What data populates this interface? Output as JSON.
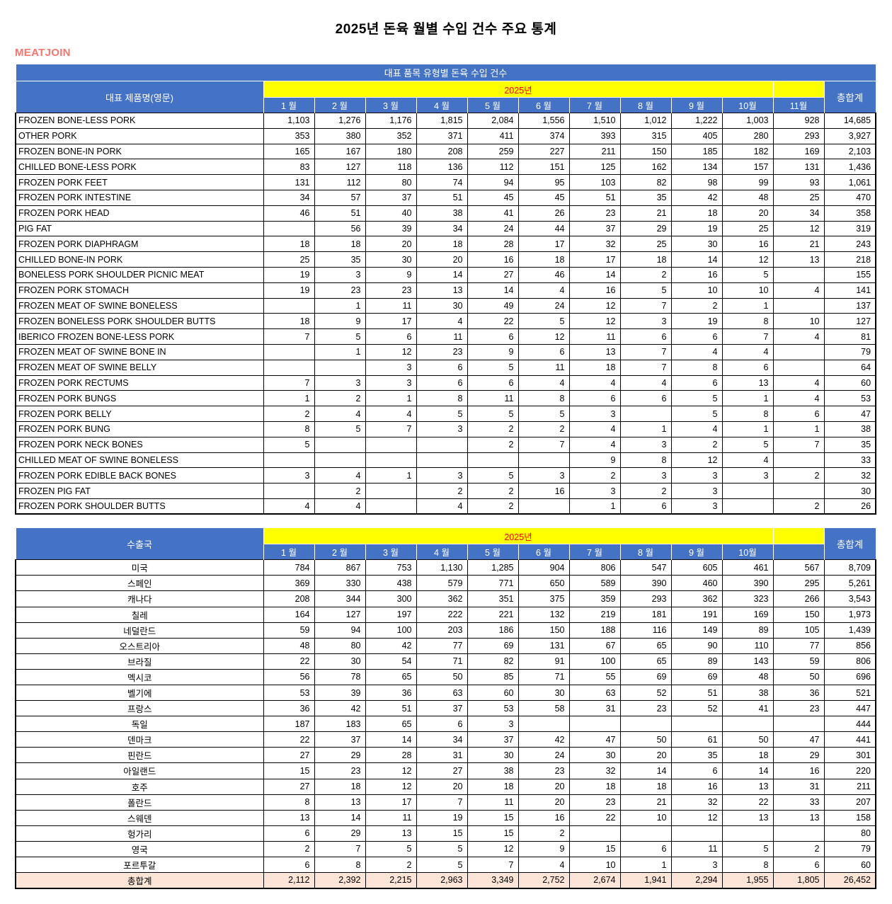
{
  "page": {
    "title": "2025년 돈육 월별 수입 건수 주요 통계",
    "logo": "MEATJOIN"
  },
  "colors": {
    "header_blue": "#4472C4",
    "band_yellow": "#FFFF00",
    "year_text_red": "#FF0000",
    "total_row_bg": "#FCE4D6",
    "logo_pink": "#F8766D"
  },
  "table1": {
    "band_title": "대표 품목 유형별 돈육 수입 건수",
    "name_header": "대표 제품명(영문)",
    "year_label": "2025년",
    "total_header": "총합계",
    "months": [
      "1 월",
      "2 월",
      "3 월",
      "4 월",
      "5 월",
      "6 월",
      "7 월",
      "8 월",
      "9 월",
      "10월",
      "11월"
    ],
    "rows": [
      {
        "name": "FROZEN BONE-LESS PORK",
        "values": [
          "1,103",
          "1,276",
          "1,176",
          "1,815",
          "2,084",
          "1,556",
          "1,510",
          "1,012",
          "1,222",
          "1,003",
          "928"
        ],
        "total": "14,685"
      },
      {
        "name": "OTHER PORK",
        "values": [
          "353",
          "380",
          "352",
          "371",
          "411",
          "374",
          "393",
          "315",
          "405",
          "280",
          "293"
        ],
        "total": "3,927"
      },
      {
        "name": "FROZEN BONE-IN PORK",
        "values": [
          "165",
          "167",
          "180",
          "208",
          "259",
          "227",
          "211",
          "150",
          "185",
          "182",
          "169"
        ],
        "total": "2,103"
      },
      {
        "name": "CHILLED BONE-LESS PORK",
        "values": [
          "83",
          "127",
          "118",
          "136",
          "112",
          "151",
          "125",
          "162",
          "134",
          "157",
          "131"
        ],
        "total": "1,436"
      },
      {
        "name": "FROZEN PORK FEET",
        "values": [
          "131",
          "112",
          "80",
          "74",
          "94",
          "95",
          "103",
          "82",
          "98",
          "99",
          "93"
        ],
        "total": "1,061"
      },
      {
        "name": "FROZEN PORK INTESTINE",
        "values": [
          "34",
          "57",
          "37",
          "51",
          "45",
          "45",
          "51",
          "35",
          "42",
          "48",
          "25"
        ],
        "total": "470"
      },
      {
        "name": "FROZEN PORK HEAD",
        "values": [
          "46",
          "51",
          "40",
          "38",
          "41",
          "26",
          "23",
          "21",
          "18",
          "20",
          "34"
        ],
        "total": "358"
      },
      {
        "name": "PIG FAT",
        "values": [
          "",
          "56",
          "39",
          "34",
          "24",
          "44",
          "37",
          "29",
          "19",
          "25",
          "12"
        ],
        "total": "319"
      },
      {
        "name": "FROZEN PORK DIAPHRAGM",
        "values": [
          "18",
          "18",
          "20",
          "18",
          "28",
          "17",
          "32",
          "25",
          "30",
          "16",
          "21"
        ],
        "total": "243"
      },
      {
        "name": "CHILLED BONE-IN PORK",
        "values": [
          "25",
          "35",
          "30",
          "20",
          "16",
          "18",
          "17",
          "18",
          "14",
          "12",
          "13"
        ],
        "total": "218"
      },
      {
        "name": "BONELESS PORK SHOULDER PICNIC MEAT",
        "values": [
          "19",
          "3",
          "9",
          "14",
          "27",
          "46",
          "14",
          "2",
          "16",
          "5",
          ""
        ],
        "total": "155"
      },
      {
        "name": "FROZEN PORK STOMACH",
        "values": [
          "19",
          "23",
          "23",
          "13",
          "14",
          "4",
          "16",
          "5",
          "10",
          "10",
          "4"
        ],
        "total": "141"
      },
      {
        "name": "FROZEN MEAT OF SWINE BONELESS",
        "values": [
          "",
          "1",
          "11",
          "30",
          "49",
          "24",
          "12",
          "7",
          "2",
          "1",
          ""
        ],
        "total": "137"
      },
      {
        "name": "FROZEN BONELESS PORK SHOULDER BUTTS",
        "values": [
          "18",
          "9",
          "17",
          "4",
          "22",
          "5",
          "12",
          "3",
          "19",
          "8",
          "10"
        ],
        "total": "127"
      },
      {
        "name": "IBERICO FROZEN BONE-LESS PORK",
        "values": [
          "7",
          "5",
          "6",
          "11",
          "6",
          "12",
          "11",
          "6",
          "6",
          "7",
          "4"
        ],
        "total": "81"
      },
      {
        "name": "FROZEN MEAT OF SWINE BONE IN",
        "values": [
          "",
          "1",
          "12",
          "23",
          "9",
          "6",
          "13",
          "7",
          "4",
          "4",
          ""
        ],
        "total": "79"
      },
      {
        "name": "FROZEN MEAT OF SWINE BELLY",
        "values": [
          "",
          "",
          "3",
          "6",
          "5",
          "11",
          "18",
          "7",
          "8",
          "6",
          ""
        ],
        "total": "64"
      },
      {
        "name": "FROZEN PORK RECTUMS",
        "values": [
          "7",
          "3",
          "3",
          "6",
          "6",
          "4",
          "4",
          "4",
          "6",
          "13",
          "4"
        ],
        "total": "60"
      },
      {
        "name": "FROZEN PORK BUNGS",
        "values": [
          "1",
          "2",
          "1",
          "8",
          "11",
          "8",
          "6",
          "6",
          "5",
          "1",
          "4"
        ],
        "total": "53"
      },
      {
        "name": "FROZEN PORK BELLY",
        "values": [
          "2",
          "4",
          "4",
          "5",
          "5",
          "5",
          "3",
          "",
          "5",
          "8",
          "6"
        ],
        "total": "47"
      },
      {
        "name": "FROZEN PORK BUNG",
        "values": [
          "8",
          "5",
          "7",
          "3",
          "2",
          "2",
          "4",
          "1",
          "4",
          "1",
          "1"
        ],
        "total": "38"
      },
      {
        "name": "FROZEN PORK NECK BONES",
        "values": [
          "5",
          "",
          "",
          "",
          "2",
          "7",
          "4",
          "3",
          "2",
          "5",
          "7"
        ],
        "total": "35"
      },
      {
        "name": "CHILLED MEAT OF SWINE BONELESS",
        "values": [
          "",
          "",
          "",
          "",
          "",
          "",
          "9",
          "8",
          "12",
          "4",
          ""
        ],
        "total": "33"
      },
      {
        "name": "FROZEN PORK EDIBLE BACK BONES",
        "values": [
          "3",
          "4",
          "1",
          "3",
          "5",
          "3",
          "2",
          "3",
          "3",
          "3",
          "2"
        ],
        "total": "32"
      },
      {
        "name": "FROZEN PIG FAT",
        "values": [
          "",
          "2",
          "",
          "2",
          "2",
          "16",
          "3",
          "2",
          "3",
          "",
          ""
        ],
        "total": "30"
      },
      {
        "name": "FROZEN PORK SHOULDER BUTTS",
        "values": [
          "4",
          "4",
          "",
          "4",
          "2",
          "",
          "1",
          "6",
          "3",
          "",
          "2"
        ],
        "total": "26"
      }
    ]
  },
  "table2": {
    "name_header": "수출국",
    "year_label": "2025년",
    "total_header": "총합계",
    "months": [
      "1 월",
      "2 월",
      "3 월",
      "4 월",
      "5 월",
      "6 월",
      "7 월",
      "8 월",
      "9 월",
      "10월",
      ""
    ],
    "rows": [
      {
        "name": "미국",
        "values": [
          "784",
          "867",
          "753",
          "1,130",
          "1,285",
          "904",
          "806",
          "547",
          "605",
          "461",
          "567"
        ],
        "total": "8,709"
      },
      {
        "name": "스페인",
        "values": [
          "369",
          "330",
          "438",
          "579",
          "771",
          "650",
          "589",
          "390",
          "460",
          "390",
          "295"
        ],
        "total": "5,261"
      },
      {
        "name": "캐나다",
        "values": [
          "208",
          "344",
          "300",
          "362",
          "351",
          "375",
          "359",
          "293",
          "362",
          "323",
          "266"
        ],
        "total": "3,543"
      },
      {
        "name": "칠레",
        "values": [
          "164",
          "127",
          "197",
          "222",
          "221",
          "132",
          "219",
          "181",
          "191",
          "169",
          "150"
        ],
        "total": "1,973"
      },
      {
        "name": "네덜란드",
        "values": [
          "59",
          "94",
          "100",
          "203",
          "186",
          "150",
          "188",
          "116",
          "149",
          "89",
          "105"
        ],
        "total": "1,439"
      },
      {
        "name": "오스트리아",
        "values": [
          "48",
          "80",
          "42",
          "77",
          "69",
          "131",
          "67",
          "65",
          "90",
          "110",
          "77"
        ],
        "total": "856"
      },
      {
        "name": "브라질",
        "values": [
          "22",
          "30",
          "54",
          "71",
          "82",
          "91",
          "100",
          "65",
          "89",
          "143",
          "59"
        ],
        "total": "806"
      },
      {
        "name": "멕시코",
        "values": [
          "56",
          "78",
          "65",
          "50",
          "85",
          "71",
          "55",
          "69",
          "69",
          "48",
          "50"
        ],
        "total": "696"
      },
      {
        "name": "벨기에",
        "values": [
          "53",
          "39",
          "36",
          "63",
          "60",
          "30",
          "63",
          "52",
          "51",
          "38",
          "36"
        ],
        "total": "521"
      },
      {
        "name": "프랑스",
        "values": [
          "36",
          "42",
          "51",
          "37",
          "53",
          "58",
          "31",
          "23",
          "52",
          "41",
          "23"
        ],
        "total": "447"
      },
      {
        "name": "독일",
        "values": [
          "187",
          "183",
          "65",
          "6",
          "3",
          "",
          "",
          "",
          "",
          "",
          ""
        ],
        "total": "444"
      },
      {
        "name": "덴마크",
        "values": [
          "22",
          "37",
          "14",
          "34",
          "37",
          "42",
          "47",
          "50",
          "61",
          "50",
          "47"
        ],
        "total": "441"
      },
      {
        "name": "핀란드",
        "values": [
          "27",
          "29",
          "28",
          "31",
          "30",
          "24",
          "30",
          "20",
          "35",
          "18",
          "29"
        ],
        "total": "301"
      },
      {
        "name": "아일랜드",
        "values": [
          "15",
          "23",
          "12",
          "27",
          "38",
          "23",
          "32",
          "14",
          "6",
          "14",
          "16"
        ],
        "total": "220"
      },
      {
        "name": "호주",
        "values": [
          "27",
          "18",
          "12",
          "20",
          "18",
          "20",
          "18",
          "18",
          "16",
          "13",
          "31"
        ],
        "total": "211"
      },
      {
        "name": "폴란드",
        "values": [
          "8",
          "13",
          "17",
          "7",
          "11",
          "20",
          "23",
          "21",
          "32",
          "22",
          "33"
        ],
        "total": "207"
      },
      {
        "name": "스웨덴",
        "values": [
          "13",
          "14",
          "11",
          "19",
          "15",
          "16",
          "22",
          "10",
          "12",
          "13",
          "13"
        ],
        "total": "158"
      },
      {
        "name": "헝가리",
        "values": [
          "6",
          "29",
          "13",
          "15",
          "15",
          "2",
          "",
          "",
          "",
          "",
          ""
        ],
        "total": "80"
      },
      {
        "name": "영국",
        "values": [
          "2",
          "7",
          "5",
          "5",
          "12",
          "9",
          "15",
          "6",
          "11",
          "5",
          "2"
        ],
        "total": "79"
      },
      {
        "name": "포르투갈",
        "values": [
          "6",
          "8",
          "2",
          "5",
          "7",
          "4",
          "10",
          "1",
          "3",
          "8",
          "6"
        ],
        "total": "60"
      }
    ],
    "total_row": {
      "name": "총합계",
      "values": [
        "2,112",
        "2,392",
        "2,215",
        "2,963",
        "3,349",
        "2,752",
        "2,674",
        "1,941",
        "2,294",
        "1,955",
        "1,805"
      ],
      "total": "26,452"
    }
  }
}
